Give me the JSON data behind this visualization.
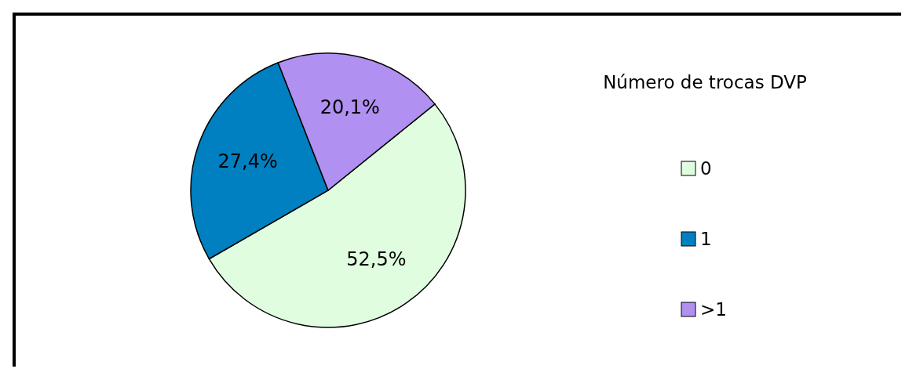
{
  "chart_data": {
    "type": "pie",
    "legend_title": "Número de trocas DVP",
    "categories": [
      "0",
      "1",
      ">1"
    ],
    "values": [
      52.5,
      27.4,
      20.1
    ],
    "colors": [
      "#e0fde0",
      "#0080c0",
      "#b090f0"
    ],
    "value_labels": [
      "52,5%",
      "27,4%",
      "20,1%"
    ],
    "legend": "right"
  }
}
